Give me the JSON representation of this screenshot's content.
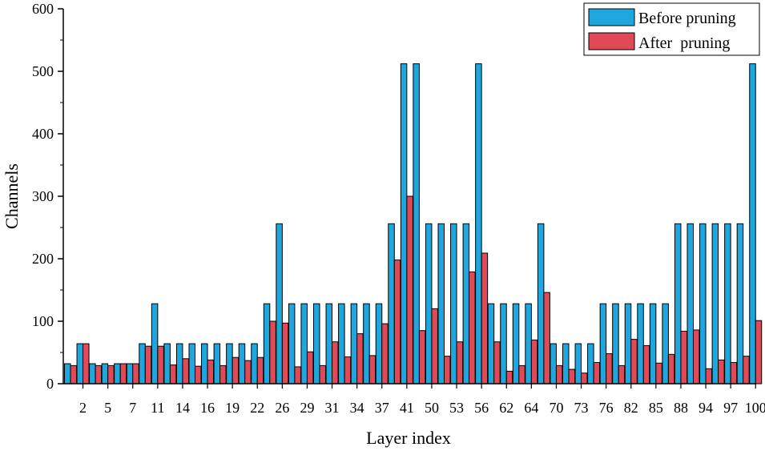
{
  "chart_data": {
    "type": "bar",
    "title": "",
    "xlabel": "Layer index",
    "ylabel": "Channels",
    "ylim": [
      0,
      600
    ],
    "yticks": [
      0,
      100,
      200,
      300,
      400,
      500,
      600
    ],
    "grid": false,
    "legend_position": "top-right",
    "tick_labels": [
      "2",
      "5",
      "7",
      "11",
      "14",
      "16",
      "19",
      "22",
      "26",
      "29",
      "31",
      "34",
      "37",
      "41",
      "50",
      "53",
      "56",
      "62",
      "64",
      "70",
      "73",
      "76",
      "82",
      "85",
      "88",
      "94",
      "97",
      "100"
    ],
    "series": [
      {
        "name": "Before pruning",
        "color": "#1fa7dd",
        "values": [
          32,
          64,
          32,
          32,
          32,
          32,
          64,
          128,
          64,
          64,
          64,
          64,
          64,
          64,
          64,
          64,
          128,
          256,
          128,
          128,
          128,
          128,
          128,
          128,
          128,
          128,
          256,
          512,
          512,
          256,
          256,
          256,
          256,
          512,
          128,
          128,
          128,
          128,
          256,
          64,
          64,
          64,
          64,
          128,
          128,
          128,
          128,
          128,
          128,
          256,
          256,
          256,
          256,
          256,
          256,
          512
        ]
      },
      {
        "name": "After  pruning",
        "color": "#e04a57",
        "values": [
          29,
          64,
          29,
          29,
          32,
          32,
          60,
          60,
          30,
          40,
          28,
          38,
          29,
          42,
          37,
          42,
          100,
          97,
          27,
          51,
          29,
          67,
          43,
          80,
          45,
          96,
          198,
          300,
          85,
          120,
          44,
          67,
          179,
          209,
          67,
          20,
          29,
          70,
          146,
          29,
          23,
          17,
          34,
          48,
          29,
          71,
          61,
          33,
          47,
          84,
          86,
          24,
          38,
          34,
          44,
          101
        ]
      }
    ]
  }
}
